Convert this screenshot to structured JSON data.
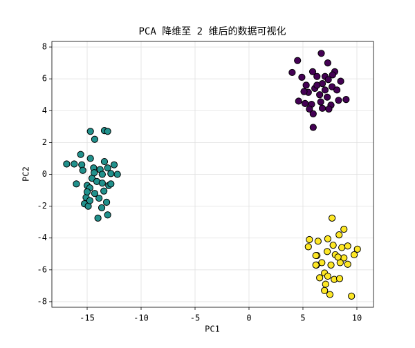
{
  "chart_data": {
    "type": "scatter",
    "title": "PCA 降维至 2 维后的数据可视化",
    "x_label": "PC1",
    "y_label": "PC2",
    "xlim": [
      -18.27,
      11.54
    ],
    "ylim": [
      -8.35,
      8.35
    ],
    "xticks": [
      -15,
      -10,
      -5,
      0,
      5,
      10
    ],
    "yticks": [
      -8,
      -6,
      -4,
      -2,
      0,
      2,
      4,
      6,
      8
    ],
    "grid": true,
    "series": [
      {
        "color": "#21918c",
        "x": [
          -14.7,
          -13.4,
          -13.1,
          -14.3,
          -15.6,
          -16.9,
          -16.2,
          -15.5,
          -14.7,
          -13.4,
          -12.5,
          -12.2,
          -13.1,
          -12.8,
          -15.4,
          -14.4,
          -13.8,
          -16.0,
          -15,
          -14.55,
          -14.1,
          -13.6,
          -13.0,
          -15.1,
          -14.3,
          -13.9,
          -13.2,
          -15.25,
          -14.9,
          -13.65,
          -14.0,
          -13.1,
          -14.75,
          -13.45,
          -14.35,
          -13.6,
          -14.75,
          -12.8,
          -15
        ],
        "values": [
          2.7,
          2.75,
          2.7,
          2.2,
          1.25,
          0.65,
          0.65,
          0.6,
          1.0,
          0.8,
          0.6,
          0,
          0.4,
          0.05,
          0.25,
          0.4,
          0.3,
          -0.6,
          -0.7,
          -0.25,
          -0.45,
          -0.55,
          -0.7,
          -1.45,
          -1.2,
          -1.5,
          -1.75,
          -1.85,
          -2.0,
          -2.1,
          -2.75,
          -2.55,
          -0.85,
          -1.05,
          0.1,
          0,
          -1.65,
          -0.6,
          -1.1
        ]
      },
      {
        "color": "#440154",
        "x": [
          6.7,
          4.5,
          7.3,
          4.0,
          5.9,
          7.95,
          4.9,
          6.3,
          7.05,
          8.5,
          5.3,
          6.1,
          6.8,
          7.7,
          8.15,
          5.5,
          6.55,
          7.25,
          9.0,
          4.6,
          5.2,
          5.8,
          6.65,
          7.6,
          8.3,
          5.6,
          5.95,
          7.4,
          5.95,
          7.05,
          6.3,
          7.35,
          5.1,
          6.8,
          7.75
        ],
        "values": [
          7.6,
          7.15,
          7.0,
          6.4,
          6.45,
          6.45,
          6.1,
          6.15,
          6.15,
          5.85,
          5.6,
          5.4,
          5.7,
          5.5,
          5.3,
          5.15,
          5.0,
          4.85,
          4.7,
          4.6,
          4.45,
          4.4,
          4.55,
          4.35,
          4.65,
          4.1,
          3.8,
          4.1,
          2.95,
          5.3,
          5.6,
          5.95,
          5.2,
          4.15,
          6.25
        ]
      },
      {
        "color": "#fde725",
        "x": [
          7.7,
          8.8,
          7.3,
          8.35,
          5.6,
          6.4,
          10.05,
          9.15,
          7.8,
          8.6,
          5.5,
          6.3,
          7.25,
          8.0,
          9.75,
          8.8,
          6.2,
          6.75,
          7.6,
          8.45,
          6.25,
          9.15,
          7.0,
          6.55,
          7.3,
          7.9,
          8.4,
          7.1,
          7.0,
          7.5,
          9.5,
          8.25,
          6.2
        ],
        "values": [
          -2.75,
          -3.45,
          -4.05,
          -3.8,
          -4.1,
          -4.2,
          -4.7,
          -4.5,
          -4.45,
          -4.6,
          -4.55,
          -5.1,
          -4.85,
          -5.05,
          -5.05,
          -5.25,
          -5.1,
          -5.55,
          -5.7,
          -5.55,
          -5.7,
          -5.65,
          -6.2,
          -6.5,
          -6.4,
          -6.6,
          -6.55,
          -6.9,
          -7.3,
          -7.55,
          -7.65,
          -5.2,
          -5.7
        ]
      }
    ]
  }
}
